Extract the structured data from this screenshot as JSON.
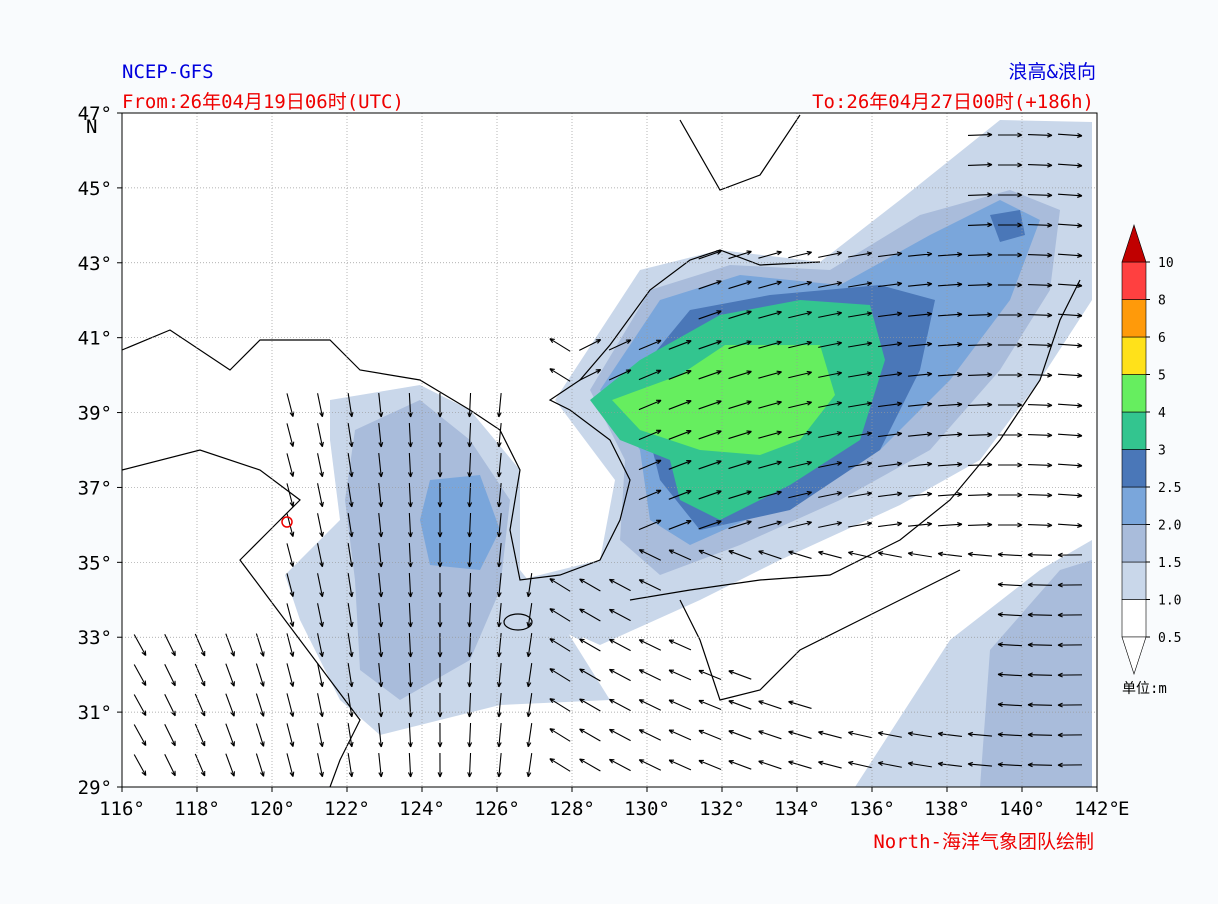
{
  "header": {
    "model": "NCEP-GFS",
    "product": "浪高&浪向",
    "from": "From:26年04月19日06时(UTC)",
    "to": "To:26年04月27日00时(+186h)"
  },
  "axes": {
    "lat_labels": [
      "47°",
      "45°",
      "43°",
      "41°",
      "39°",
      "37°",
      "35°",
      "33°",
      "31°",
      "29°"
    ],
    "lat_unit": "N",
    "lon_labels": [
      "116°",
      "118°",
      "120°",
      "122°",
      "124°",
      "126°",
      "128°",
      "130°",
      "132°",
      "134°",
      "136°",
      "138°",
      "140°",
      "142°"
    ],
    "lon_unit": "E"
  },
  "colorbar": {
    "levels": [
      "0.5",
      "1.0",
      "1.5",
      "2.0",
      "2.5",
      "3",
      "4",
      "5",
      "6",
      "8",
      "10"
    ],
    "colors": [
      "#ffffff",
      "#c9d7ea",
      "#a9bcdb",
      "#7aa6db",
      "#4a77b8",
      "#33c58f",
      "#66ee5f",
      "#ffe11a",
      "#ff9a0a",
      "#ff4040"
    ],
    "over_color": "#c00000",
    "under_color": "#ffffff",
    "unit": "单位:m"
  },
  "footer": {
    "credit": "North-海洋气象团队绘制"
  }
}
